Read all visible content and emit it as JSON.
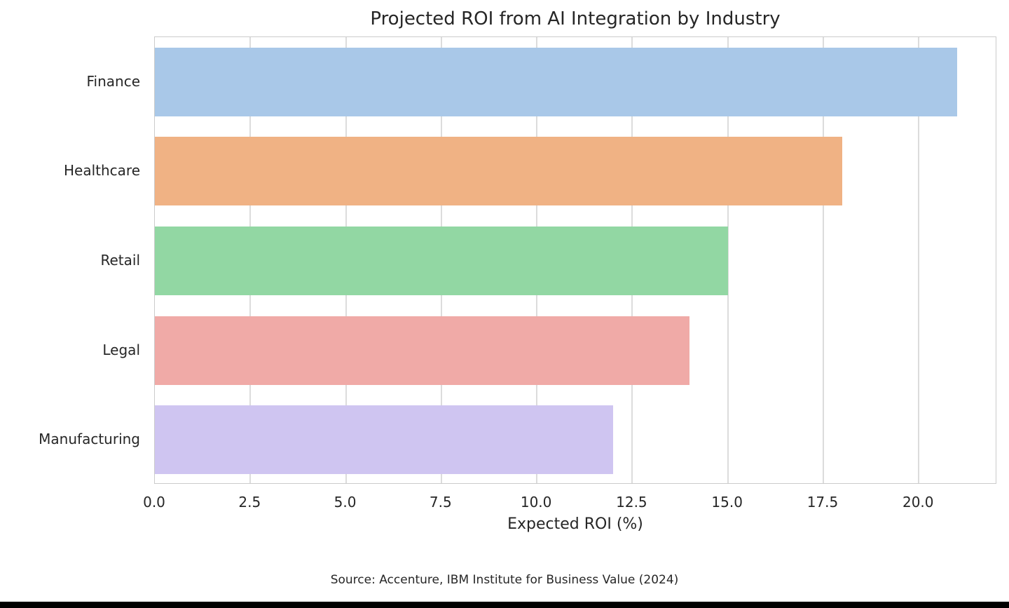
{
  "page": {
    "background_color": "#ffffff",
    "bottom_border_color": "#000000"
  },
  "chart_data": {
    "type": "bar",
    "orientation": "horizontal",
    "title": "Projected ROI from AI Integration by Industry",
    "categories": [
      "Finance",
      "Healthcare",
      "Retail",
      "Legal",
      "Manufacturing"
    ],
    "values": [
      21,
      18,
      15,
      14,
      12
    ],
    "bar_colors": [
      "#a9c8e8",
      "#f0b284",
      "#92d7a3",
      "#f0aaa7",
      "#cfc5f1"
    ],
    "xlabel": "Expected ROI (%)",
    "ylabel": "",
    "xlim": [
      0,
      22.05
    ],
    "xticks": [
      0,
      2.5,
      5,
      7.5,
      10,
      12.5,
      15,
      17.5,
      20
    ],
    "xtick_labels": [
      "0.0",
      "2.5",
      "5.0",
      "7.5",
      "10.0",
      "12.5",
      "15.0",
      "17.5",
      "20.0"
    ],
    "grid": "vertical",
    "grid_color": "#dcdcdc",
    "axes_edge_color": "#cbcbcb",
    "text_color": "#262626",
    "legend": "none",
    "source_note": "Source: Accenture, IBM Institute for Business Value (2024)"
  }
}
